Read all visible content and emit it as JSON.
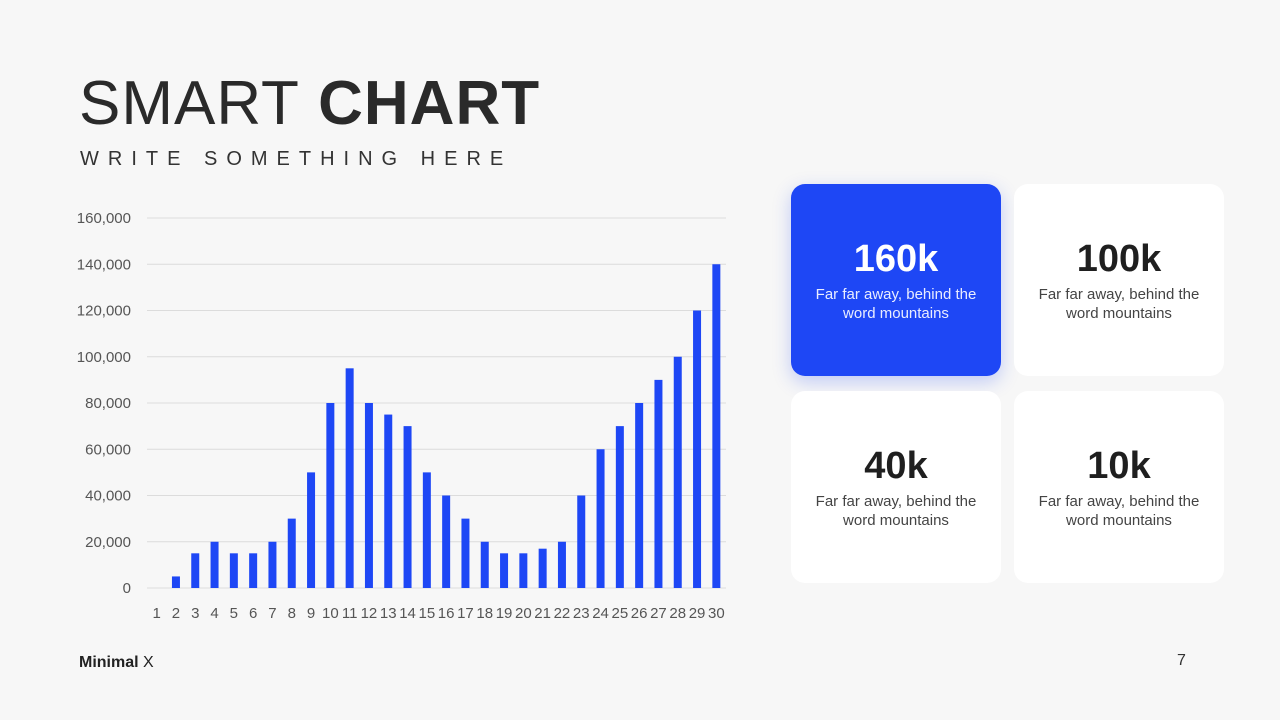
{
  "header": {
    "title_light": "SMART",
    "title_bold": "CHART",
    "subtitle": "WRITE SOMETHING HERE"
  },
  "chart_data": {
    "type": "bar",
    "title": "",
    "xlabel": "",
    "ylabel": "",
    "categories": [
      "1",
      "2",
      "3",
      "4",
      "5",
      "6",
      "7",
      "8",
      "9",
      "10",
      "11",
      "12",
      "13",
      "14",
      "15",
      "16",
      "17",
      "18",
      "19",
      "20",
      "21",
      "22",
      "23",
      "24",
      "25",
      "26",
      "27",
      "28",
      "29",
      "30"
    ],
    "values": [
      0,
      5000,
      15000,
      20000,
      15000,
      15000,
      20000,
      30000,
      50000,
      80000,
      95000,
      80000,
      75000,
      70000,
      50000,
      40000,
      30000,
      20000,
      15000,
      15000,
      17000,
      20000,
      40000,
      60000,
      70000,
      80000,
      90000,
      100000,
      120000,
      140000
    ],
    "ylim": [
      0,
      160000
    ],
    "yticks": [
      0,
      20000,
      40000,
      60000,
      80000,
      100000,
      120000,
      140000,
      160000
    ],
    "ytick_labels": [
      "0",
      "20,000",
      "40,000",
      "60,000",
      "80,000",
      "100,000",
      "120,000",
      "140,000",
      "160,000"
    ],
    "grid": true,
    "bar_color": "#1e47f5"
  },
  "cards": [
    {
      "value": "160k",
      "description": "Far far away, behind the word mountains",
      "active": true
    },
    {
      "value": "100k",
      "description": "Far far away, behind the word mountains",
      "active": false
    },
    {
      "value": "40k",
      "description": "Far far away, behind the word mountains",
      "active": false
    },
    {
      "value": "10k",
      "description": "Far far away, behind the word mountains",
      "active": false
    }
  ],
  "footer": {
    "brand_bold": "Minimal",
    "brand_light": "X",
    "page_number": "7"
  },
  "colors": {
    "accent": "#1e47f5",
    "background": "#f7f7f7"
  }
}
